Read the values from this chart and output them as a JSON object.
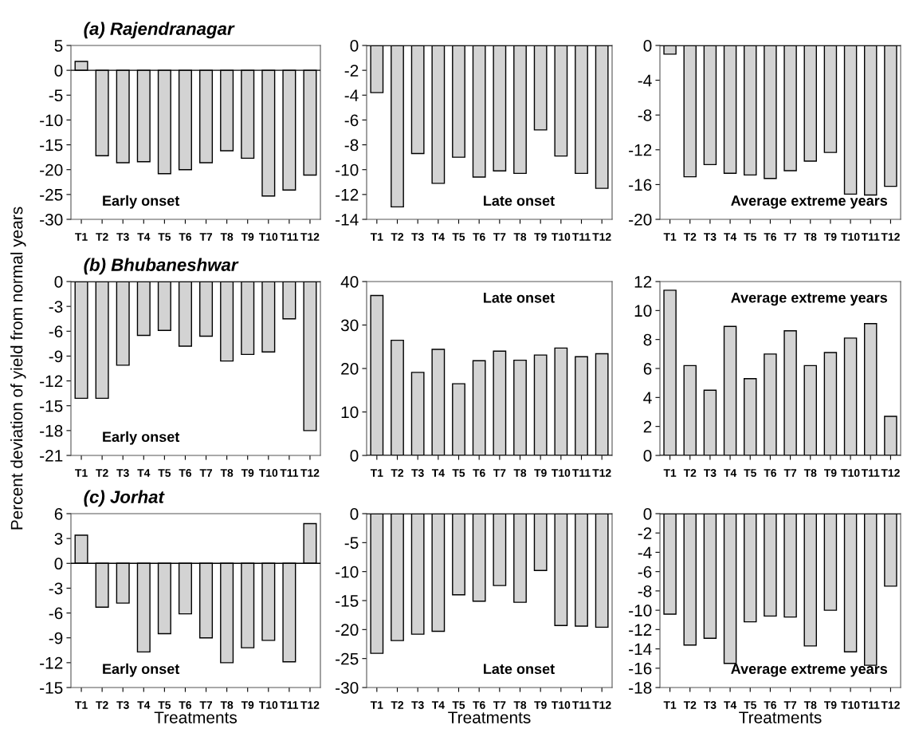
{
  "chart_data": [
    {
      "type": "bar",
      "title": "(a) Rajendranagar",
      "categories": [
        "T1",
        "T2",
        "T3",
        "T4",
        "T5",
        "T6",
        "T7",
        "T8",
        "T9",
        "T10",
        "T11",
        "T12"
      ],
      "values": [
        1.8,
        -17.2,
        -18.6,
        -18.4,
        -20.8,
        -20,
        -18.6,
        -16.2,
        -17.7,
        -25.3,
        -24.1,
        -21.1
      ],
      "color": "#d3d3d3",
      "ylim": [
        -30,
        5
      ],
      "yticks": [
        -30,
        -25,
        -20,
        -15,
        -10,
        -5,
        0,
        5
      ],
      "annotations": [
        "Early onset"
      ]
    },
    {
      "type": "bar",
      "categories": [
        "T1",
        "T2",
        "T3",
        "T4",
        "T5",
        "T6",
        "T7",
        "T8",
        "T9",
        "T10",
        "T11",
        "T12"
      ],
      "values": [
        -3.8,
        -13.0,
        -8.7,
        -11.1,
        -9.0,
        -10.6,
        -10.1,
        -10.3,
        -6.8,
        -8.9,
        -10.3,
        -11.5
      ],
      "color": "#d3d3d3",
      "ylim": [
        -14,
        0
      ],
      "yticks": [
        -14,
        -12,
        -10,
        -8,
        -6,
        -4,
        -2,
        0
      ],
      "annotations": [
        "Late onset"
      ]
    },
    {
      "type": "bar",
      "categories": [
        "T1",
        "T2",
        "T3",
        "T4",
        "T5",
        "T6",
        "T7",
        "T8",
        "T9",
        "T10",
        "T11",
        "T12"
      ],
      "values": [
        -1.0,
        -15.1,
        -13.7,
        -14.7,
        -14.9,
        -15.3,
        -14.4,
        -13.3,
        -12.3,
        -17.1,
        -17.2,
        -16.2
      ],
      "color": "#d3d3d3",
      "ylim": [
        -20,
        0
      ],
      "yticks": [
        -20,
        -16,
        -12,
        -8,
        -4,
        0
      ],
      "annotations": [
        "Average extreme years"
      ]
    },
    {
      "type": "bar",
      "title": "(b) Bhubaneshwar",
      "ylabel": "Percent deviation of yield from normal years",
      "categories": [
        "T1",
        "T2",
        "T3",
        "T4",
        "T5",
        "T6",
        "T7",
        "T8",
        "T9",
        "T10",
        "T11",
        "T12"
      ],
      "values": [
        -14.1,
        -14.1,
        -10.1,
        -6.5,
        -5.9,
        -7.8,
        -6.6,
        -9.6,
        -8.8,
        -8.5,
        -4.5,
        -18.0
      ],
      "color": "#d3d3d3",
      "ylim": [
        -21,
        0
      ],
      "yticks": [
        -21,
        -18,
        -15,
        -12,
        -9,
        -6,
        -3,
        0
      ],
      "annotations": [
        "Early onset"
      ]
    },
    {
      "type": "bar",
      "categories": [
        "T1",
        "T2",
        "T3",
        "T4",
        "T5",
        "T6",
        "T7",
        "T8",
        "T9",
        "T10",
        "T11",
        "T12"
      ],
      "values": [
        36.8,
        26.5,
        19.1,
        24.4,
        16.5,
        21.8,
        24.0,
        21.9,
        23.1,
        24.7,
        22.7,
        23.4
      ],
      "color": "#d3d3d3",
      "ylim": [
        0,
        40
      ],
      "yticks": [
        0,
        10,
        20,
        30,
        40
      ],
      "annotations": [
        "Late onset"
      ]
    },
    {
      "type": "bar",
      "categories": [
        "T1",
        "T2",
        "T3",
        "T4",
        "T5",
        "T6",
        "T7",
        "T8",
        "T9",
        "T10",
        "T11",
        "T12"
      ],
      "values": [
        11.4,
        6.2,
        4.5,
        8.9,
        5.3,
        7.0,
        8.6,
        6.2,
        7.1,
        8.1,
        9.1,
        2.7
      ],
      "color": "#d3d3d3",
      "ylim": [
        0,
        12
      ],
      "yticks": [
        0,
        2,
        4,
        6,
        8,
        10,
        12
      ],
      "annotations": [
        "Average extreme years"
      ]
    },
    {
      "type": "bar",
      "title": "(c) Jorhat",
      "xlabel": "Treatments",
      "categories": [
        "T1",
        "T2",
        "T3",
        "T4",
        "T5",
        "T6",
        "T7",
        "T8",
        "T9",
        "T10",
        "T11",
        "T12"
      ],
      "values": [
        3.4,
        -5.3,
        -4.8,
        -10.7,
        -8.5,
        -6.1,
        -9.0,
        -12.0,
        -10.2,
        -9.3,
        -11.9,
        4.8
      ],
      "color": "#d3d3d3",
      "ylim": [
        -15,
        6
      ],
      "yticks": [
        -15,
        -12,
        -9,
        -6,
        -3,
        0,
        3,
        6
      ],
      "annotations": [
        "Early onset"
      ]
    },
    {
      "type": "bar",
      "xlabel": "Treatments",
      "categories": [
        "T1",
        "T2",
        "T3",
        "T4",
        "T5",
        "T6",
        "T7",
        "T8",
        "T9",
        "T10",
        "T11",
        "T12"
      ],
      "values": [
        -24.1,
        -21.9,
        -20.8,
        -20.3,
        -14.0,
        -15.1,
        -12.4,
        -15.3,
        -9.8,
        -19.3,
        -19.4,
        -19.6
      ],
      "color": "#d3d3d3",
      "ylim": [
        -30,
        0
      ],
      "yticks": [
        -30,
        -25,
        -20,
        -15,
        -10,
        -5,
        0
      ],
      "annotations": [
        "Late onset"
      ]
    },
    {
      "type": "bar",
      "xlabel": "Treatments",
      "categories": [
        "T1",
        "T2",
        "T3",
        "T4",
        "T5",
        "T6",
        "T7",
        "T8",
        "T9",
        "T10",
        "T11",
        "T12"
      ],
      "values": [
        -10.4,
        -13.6,
        -12.9,
        -15.5,
        -11.2,
        -10.6,
        -10.7,
        -13.7,
        -10.0,
        -14.3,
        -15.7,
        -7.5
      ],
      "color": "#d3d3d3",
      "ylim": [
        -18,
        0
      ],
      "yticks": [
        -18,
        -16,
        -14,
        -12,
        -10,
        -8,
        -6,
        -4,
        -2,
        0
      ],
      "annotations": [
        "Average extreme years"
      ]
    }
  ]
}
